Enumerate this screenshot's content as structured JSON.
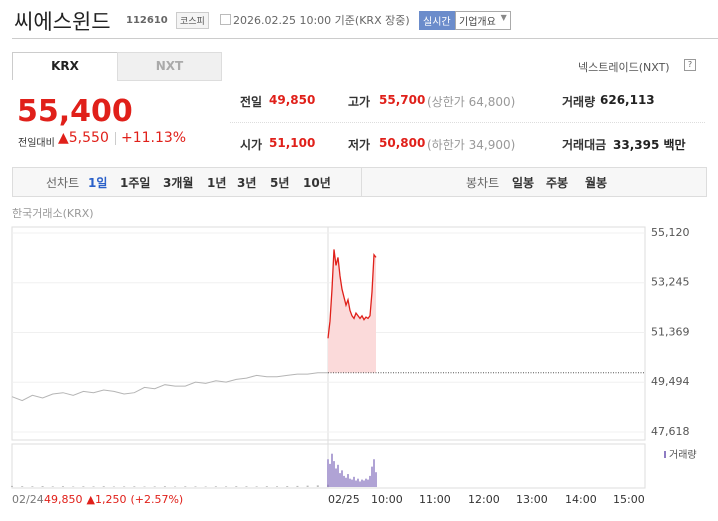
{
  "header": {
    "name": "씨에스윈드",
    "code": "112610",
    "market": "코스피",
    "datetime": "2026.02.25 10:00 기준(KRX 장중)",
    "realtime": "실시간",
    "company_info": "기업개요"
  },
  "tabs": [
    "KRX",
    "NXT"
  ],
  "nxt_link": "넥스트레이드(NXT)",
  "price": {
    "current": "55,400",
    "change_label": "전일대비",
    "change": "▲5,550",
    "rate": "+11.13%"
  },
  "stats": [
    {
      "label": "전일",
      "value": "49,850"
    },
    {
      "label": "고가",
      "value": "55,700",
      "extra": "(상한가 64,800)"
    },
    {
      "label": "거래량",
      "value": "626,113"
    },
    {
      "label": "시가",
      "value": "51,100"
    },
    {
      "label": "저가",
      "value": "50,800",
      "extra": "(하한가 34,900)"
    },
    {
      "label": "거래대금",
      "value": "33,395 백만"
    }
  ],
  "periods": {
    "line_label": "선차트",
    "line": [
      "1일",
      "1주일",
      "3개월",
      "1년",
      "3년",
      "5년",
      "10년"
    ],
    "candle_label": "봉차트",
    "candle": [
      "일봉",
      "주봉",
      "월봉"
    ]
  },
  "chart": {
    "source": "한국거래소(KRX)",
    "ylim": [
      47618,
      55120
    ],
    "yticks": [
      {
        "value": 55120,
        "label": "55,120"
      },
      {
        "value": 53245,
        "label": "53,245"
      },
      {
        "value": 51369,
        "label": "51,369"
      },
      {
        "value": 49494,
        "label": "49,494"
      },
      {
        "value": 47618,
        "label": "47,618"
      }
    ],
    "prev_close": 49850,
    "yesterday": [
      48950,
      48800,
      49000,
      48900,
      49050,
      49100,
      49000,
      49150,
      49100,
      49200,
      49150,
      49050,
      49100,
      49300,
      49250,
      49400,
      49350,
      49350,
      49500,
      49450,
      49550,
      49500,
      49600,
      49650,
      49750,
      49700,
      49700,
      49750,
      49800,
      49800,
      49850,
      49850
    ],
    "today": [
      51150,
      51800,
      53000,
      54500,
      53900,
      54200,
      53500,
      53000,
      52700,
      52400,
      52600,
      52200,
      52000,
      51900,
      52100,
      52000,
      51900,
      52000,
      51850,
      51950,
      51900,
      52000,
      52900,
      54300,
      54200
    ],
    "volume_label": "거래량",
    "volume_ylim": [
      0,
      40000
    ],
    "volume_yesterday": [
      1200,
      900,
      800,
      1000,
      700,
      900,
      600,
      800,
      700,
      900,
      600,
      700,
      800,
      600,
      700,
      900,
      600,
      800,
      700,
      600,
      800,
      700,
      900,
      800,
      700,
      900,
      800,
      1000,
      1200,
      1500,
      1800,
      2500
    ],
    "volume_today": [
      30000,
      25000,
      36000,
      28000,
      20000,
      24000,
      15000,
      18000,
      12000,
      10000,
      14000,
      9000,
      8000,
      11000,
      7000,
      9000,
      6000,
      8000,
      7000,
      9000,
      8000,
      12000,
      22000,
      30000,
      16000
    ],
    "x_labels": [
      "02/24",
      "02/25",
      "10:00",
      "11:00",
      "12:00",
      "13:00",
      "14:00",
      "15:00"
    ],
    "footer": {
      "close": "49,850",
      "change": "▲1,250",
      "rate": "(+2.57%)"
    }
  }
}
